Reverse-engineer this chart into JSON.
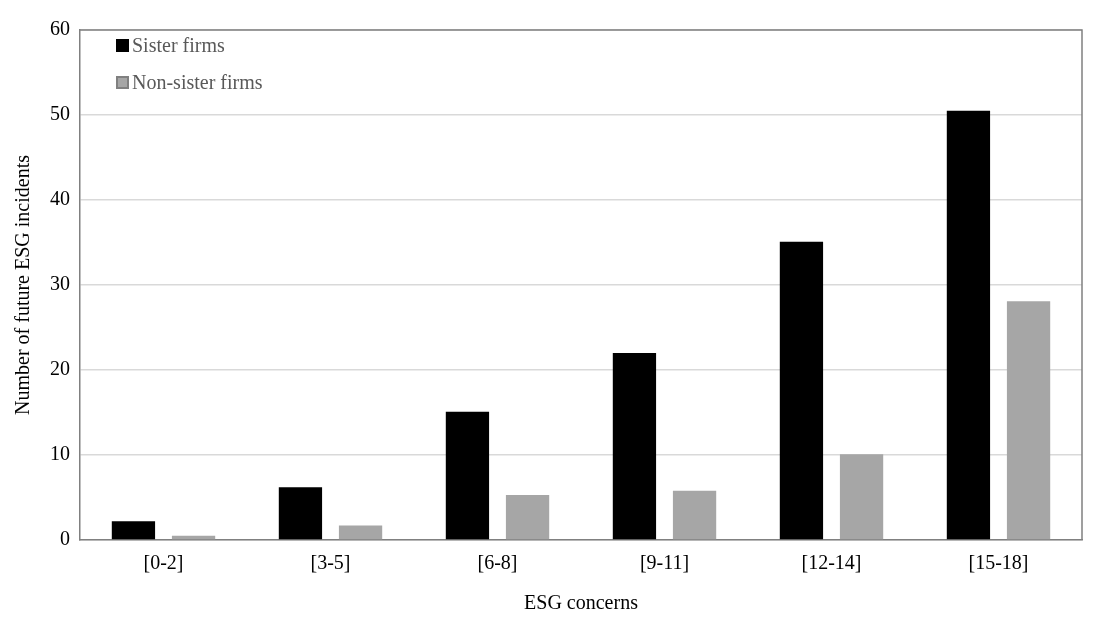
{
  "chart_data": {
    "type": "bar",
    "xlabel": "ESG concerns",
    "ylabel": "Number of future ESG incidents",
    "categories": [
      "[0-2]",
      "[3-5]",
      "[6-8]",
      "[9-11]",
      "[12-14]",
      "[15-18]"
    ],
    "series": [
      {
        "name": "Sister firms",
        "color": "#000000",
        "values": [
          2.2,
          6.2,
          15.1,
          22.0,
          35.1,
          50.5
        ]
      },
      {
        "name": "Non-sister firms",
        "color": "#a6a6a6",
        "values": [
          0.5,
          1.7,
          5.3,
          5.8,
          10.1,
          28.1
        ]
      }
    ],
    "ylim": [
      0,
      60
    ],
    "yticks": [
      0,
      10,
      20,
      30,
      40,
      50,
      60
    ],
    "grid": "y",
    "legend": "top left"
  }
}
